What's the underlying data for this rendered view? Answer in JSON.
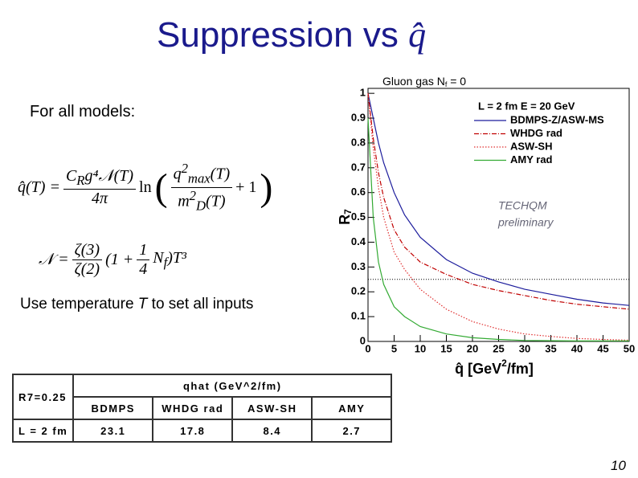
{
  "slide": {
    "title": {
      "text": "Suppression vs ",
      "symbol": "q̂"
    },
    "subtitle": "For all models:",
    "formula_1": {
      "lhs": "q̂(T) =",
      "num": [
        "C",
        "R",
        "g⁴𝒩(T)"
      ],
      "den": "4π",
      "ln": "ln",
      "inner_num": [
        "q",
        "2",
        "max",
        "(T)"
      ],
      "inner_den": [
        "m",
        "2",
        "D",
        "(T)"
      ],
      "tail": "+ 1"
    },
    "formula_2": {
      "lhs": "𝒩 =",
      "num1": "ζ(3)",
      "den1": "ζ(2)",
      "mid": "(1 +",
      "num2": "1",
      "den2": "4",
      "tail": [
        "N",
        "f",
        ")T³"
      ]
    },
    "note": [
      "Use temperature ",
      "T",
      " to set all inputs"
    ],
    "page_number": "10"
  },
  "chart_data": {
    "type": "line",
    "title": [
      "Gluon gas N",
      "f",
      " = 0"
    ],
    "y_label": [
      "R",
      "7"
    ],
    "x_label": [
      "q̂ [GeV",
      "2",
      "/fm]"
    ],
    "legend_title": "L = 2 fm E = 20 GeV",
    "annotation": [
      "TECHQM",
      "preliminary"
    ],
    "x": [
      0,
      1,
      2,
      3,
      5,
      7,
      10,
      15,
      20,
      25,
      30,
      35,
      40,
      45,
      50
    ],
    "series": [
      {
        "name": "BDMPS-Z/ASW-MS",
        "color": "#1c1c9c",
        "dash": "solid",
        "values": [
          1.0,
          0.9,
          0.8,
          0.72,
          0.6,
          0.51,
          0.42,
          0.33,
          0.275,
          0.24,
          0.21,
          0.19,
          0.17,
          0.155,
          0.145
        ]
      },
      {
        "name": "WHDG rad",
        "color": "#c00000",
        "dash": "dashdot",
        "values": [
          1.0,
          0.82,
          0.68,
          0.58,
          0.45,
          0.38,
          0.32,
          0.27,
          0.23,
          0.205,
          0.185,
          0.165,
          0.15,
          0.14,
          0.13
        ]
      },
      {
        "name": "ASW-SH",
        "color": "#e03030",
        "dash": "dotted",
        "values": [
          1.0,
          0.78,
          0.62,
          0.5,
          0.36,
          0.29,
          0.21,
          0.13,
          0.08,
          0.05,
          0.03,
          0.02,
          0.012,
          0.008,
          0.005
        ]
      },
      {
        "name": "AMY rad",
        "color": "#33aa33",
        "dash": "solid",
        "values": [
          0.9,
          0.5,
          0.32,
          0.23,
          0.14,
          0.1,
          0.06,
          0.03,
          0.015,
          0.008,
          0.004,
          0.003,
          0.002,
          0.002,
          0.002
        ]
      }
    ],
    "hline": 0.25,
    "xlim": [
      0,
      50
    ],
    "ylim": [
      0,
      1.02
    ],
    "xticks": [
      0,
      5,
      10,
      15,
      20,
      25,
      30,
      35,
      40,
      45,
      50
    ],
    "yticks": [
      0,
      0.1,
      0.2,
      0.3,
      0.4,
      0.5,
      0.6,
      0.7,
      0.8,
      0.9,
      1
    ]
  },
  "table": {
    "corner": "R7=0.25",
    "group_header": "qhat (GeV^2/fm)",
    "columns": [
      "BDMPS",
      "WHDG rad",
      "ASW-SH",
      "AMY"
    ],
    "rows": [
      {
        "label": "L = 2 fm",
        "values": [
          23.1,
          17.8,
          8.4,
          2.7
        ]
      }
    ]
  }
}
